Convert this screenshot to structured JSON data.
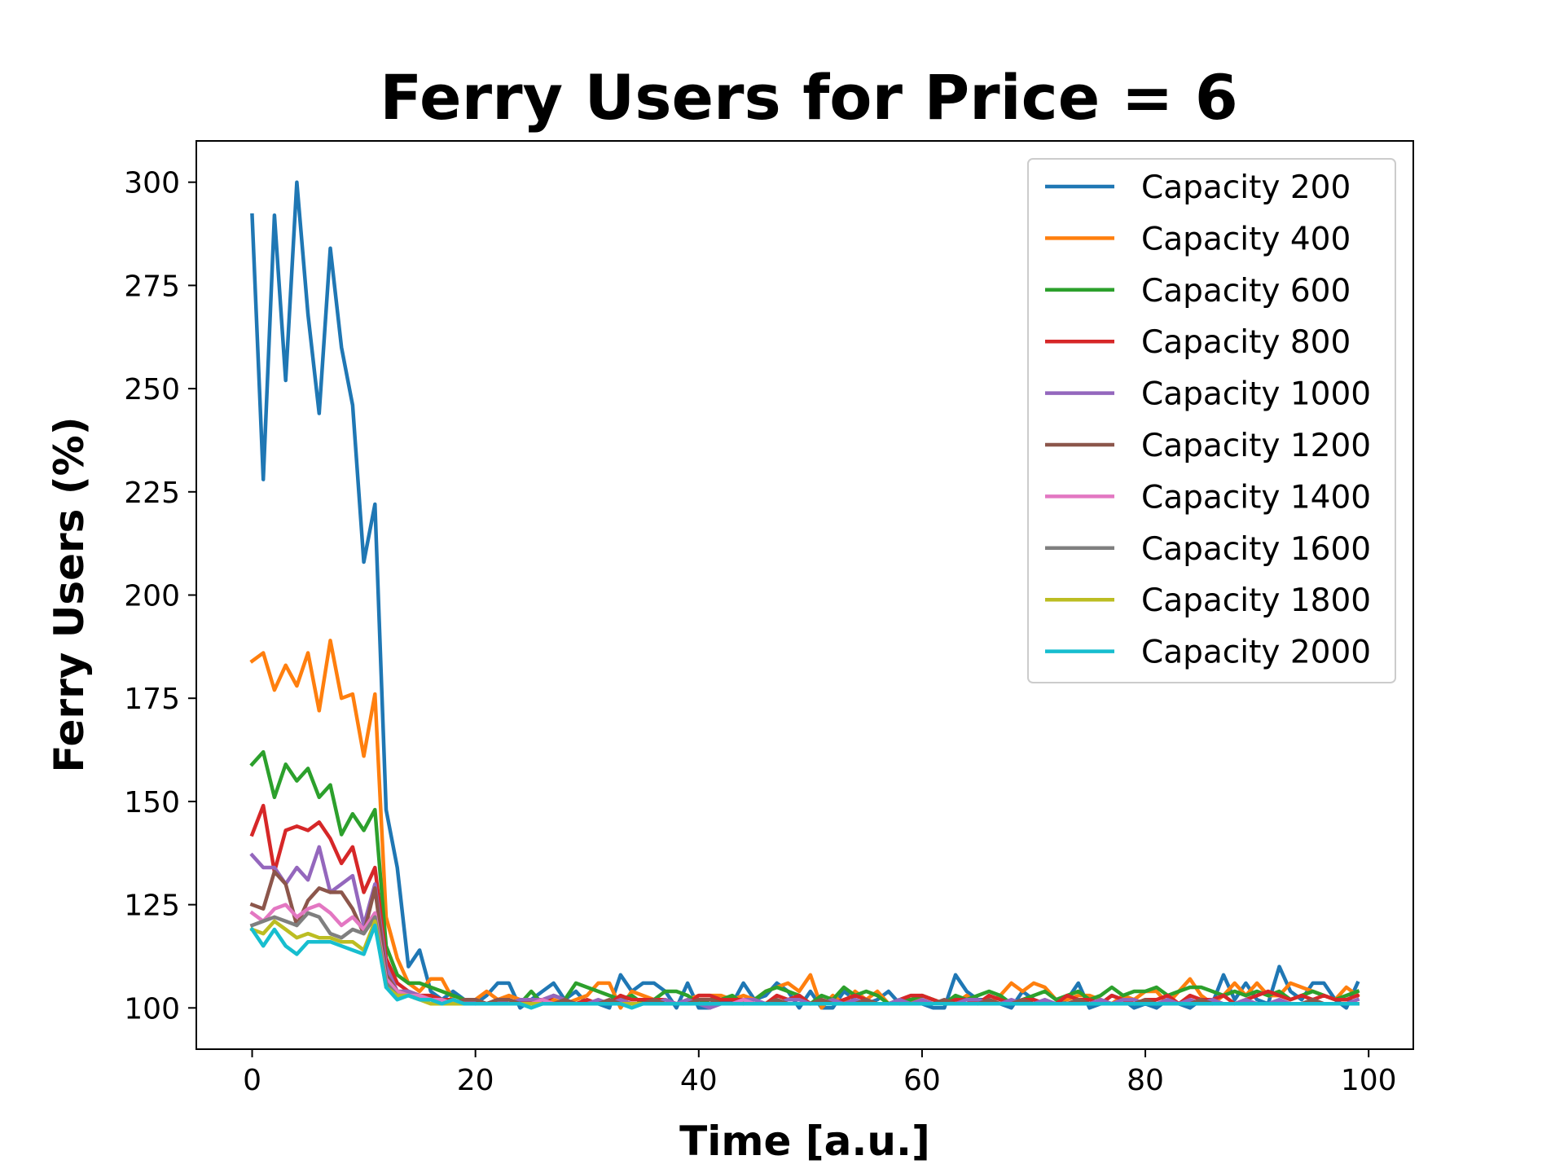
{
  "chart_data": {
    "type": "line",
    "title": "Ferry Users for Price = 6",
    "xlabel": "Time [a.u.]",
    "ylabel": "Ferry Users (%)",
    "xlim": [
      -5,
      104
    ],
    "ylim": [
      90,
      310
    ],
    "xticks": [
      0,
      20,
      40,
      60,
      80,
      100
    ],
    "yticks": [
      100,
      125,
      150,
      175,
      200,
      225,
      250,
      275,
      300
    ],
    "grid": false,
    "legend": "top-right",
    "series": [
      {
        "name": "Capacity 200",
        "color": "#1f77b4",
        "values": [
          292,
          228,
          292,
          252,
          300,
          268,
          244,
          284,
          260,
          246,
          208,
          222,
          148,
          134,
          110,
          114,
          104,
          102,
          104,
          102,
          101,
          103,
          106,
          106,
          100,
          102,
          104,
          106,
          102,
          104,
          101,
          101,
          100,
          108,
          104,
          106,
          106,
          104,
          100,
          106,
          100,
          100,
          102,
          101,
          106,
          102,
          103,
          106,
          104,
          100,
          104,
          100,
          100,
          104,
          102,
          101,
          102,
          104,
          101,
          102,
          101,
          100,
          100,
          108,
          104,
          102,
          102,
          101,
          100,
          104,
          102,
          101,
          101,
          102,
          106,
          100,
          101,
          103,
          102,
          100,
          101,
          100,
          102,
          101,
          100,
          102,
          101,
          108,
          102,
          106,
          102,
          101,
          110,
          104,
          102,
          106,
          106,
          102,
          100,
          106
        ]
      },
      {
        "name": "Capacity 400",
        "color": "#ff7f0e",
        "values": [
          184,
          186,
          177,
          183,
          178,
          186,
          172,
          189,
          175,
          176,
          161,
          176,
          122,
          112,
          106,
          104,
          107,
          107,
          102,
          101,
          102,
          104,
          102,
          103,
          102,
          102,
          101,
          102,
          101,
          102,
          103,
          106,
          106,
          100,
          104,
          103,
          102,
          101,
          101,
          102,
          103,
          103,
          103,
          102,
          103,
          102,
          104,
          105,
          106,
          104,
          108,
          100,
          103,
          101,
          104,
          102,
          104,
          101,
          101,
          101,
          103,
          102,
          101,
          101,
          103,
          101,
          101,
          103,
          106,
          104,
          106,
          105,
          102,
          102,
          103,
          103,
          102,
          101,
          103,
          102,
          104,
          104,
          101,
          104,
          107,
          103,
          101,
          103,
          106,
          103,
          106,
          103,
          103,
          106,
          105,
          104,
          103,
          102,
          105,
          103
        ]
      },
      {
        "name": "Capacity 600",
        "color": "#2ca02c",
        "values": [
          159,
          162,
          151,
          159,
          155,
          158,
          151,
          154,
          142,
          147,
          143,
          148,
          115,
          108,
          106,
          106,
          105,
          104,
          103,
          102,
          102,
          101,
          102,
          101,
          101,
          104,
          101,
          103,
          102,
          106,
          105,
          104,
          103,
          102,
          103,
          101,
          102,
          104,
          104,
          103,
          101,
          102,
          102,
          103,
          101,
          102,
          104,
          105,
          104,
          103,
          101,
          103,
          102,
          105,
          103,
          104,
          103,
          101,
          102,
          102,
          103,
          102,
          101,
          103,
          102,
          103,
          104,
          103,
          101,
          102,
          103,
          104,
          102,
          103,
          104,
          102,
          103,
          105,
          103,
          104,
          104,
          105,
          103,
          104,
          105,
          105,
          104,
          103,
          104,
          103,
          104,
          103,
          104,
          102,
          103,
          104,
          103,
          102,
          103,
          104
        ]
      },
      {
        "name": "Capacity 800",
        "color": "#d62728",
        "values": [
          142,
          149,
          133,
          143,
          144,
          143,
          145,
          141,
          135,
          139,
          128,
          134,
          112,
          106,
          104,
          103,
          103,
          102,
          102,
          101,
          102,
          101,
          102,
          102,
          101,
          102,
          101,
          103,
          102,
          101,
          102,
          101,
          101,
          103,
          102,
          102,
          102,
          102,
          101,
          101,
          103,
          103,
          102,
          102,
          102,
          102,
          101,
          103,
          102,
          103,
          101,
          102,
          101,
          102,
          103,
          102,
          101,
          101,
          102,
          103,
          103,
          102,
          101,
          102,
          102,
          101,
          103,
          102,
          101,
          102,
          102,
          101,
          101,
          103,
          102,
          102,
          101,
          103,
          102,
          101,
          102,
          102,
          103,
          101,
          103,
          102,
          102,
          103,
          101,
          102,
          103,
          104,
          103,
          102,
          103,
          102,
          103,
          102,
          102,
          103
        ]
      },
      {
        "name": "Capacity 1000",
        "color": "#9467bd",
        "values": [
          137,
          134,
          134,
          130,
          134,
          131,
          139,
          128,
          130,
          132,
          120,
          130,
          110,
          104,
          104,
          103,
          102,
          102,
          101,
          101,
          102,
          101,
          102,
          101,
          102,
          102,
          102,
          103,
          102,
          101,
          101,
          102,
          101,
          102,
          101,
          101,
          101,
          102,
          101,
          102,
          101,
          100,
          101,
          101,
          102,
          102,
          101,
          101,
          102,
          102,
          101,
          101,
          102,
          101,
          102,
          101,
          101,
          101,
          102,
          101,
          102,
          101,
          101,
          101,
          102,
          102,
          101,
          101,
          102,
          101,
          101,
          102,
          101,
          101,
          102,
          101,
          102,
          101,
          102,
          102,
          101,
          101,
          102,
          101,
          102,
          101,
          102,
          101,
          101,
          102,
          101,
          101,
          102,
          101,
          101,
          102,
          101,
          101,
          101,
          102
        ]
      },
      {
        "name": "Capacity 1200",
        "color": "#8c564b",
        "values": [
          125,
          124,
          133,
          130,
          120,
          126,
          129,
          128,
          128,
          124,
          118,
          129,
          108,
          104,
          103,
          103,
          102,
          102,
          101,
          102,
          102,
          101,
          102,
          102,
          101,
          101,
          102,
          101,
          102,
          101,
          101,
          101,
          102,
          101,
          101,
          101,
          102,
          101,
          101,
          101,
          102,
          102,
          101,
          101,
          101,
          101,
          101,
          102,
          101,
          101,
          101,
          102,
          101,
          101,
          101,
          102,
          101,
          101,
          101,
          101,
          101,
          101,
          102,
          101,
          101,
          101,
          102,
          101,
          101,
          102,
          101,
          101,
          101,
          101,
          102,
          101,
          101,
          101,
          101,
          101,
          102,
          101,
          101,
          101,
          101,
          102,
          101,
          101,
          101,
          101,
          101,
          101,
          101,
          101,
          101,
          102,
          101,
          101,
          101,
          101
        ]
      },
      {
        "name": "Capacity 1400",
        "color": "#e377c2",
        "values": [
          123,
          121,
          124,
          125,
          122,
          124,
          125,
          123,
          120,
          122,
          119,
          123,
          107,
          104,
          103,
          103,
          102,
          102,
          101,
          101,
          101,
          101,
          101,
          101,
          101,
          101,
          102,
          101,
          101,
          101,
          101,
          101,
          101,
          101,
          101,
          101,
          101,
          101,
          101,
          101,
          101,
          101,
          101,
          101,
          102,
          101,
          101,
          101,
          101,
          101,
          101,
          101,
          101,
          101,
          101,
          101,
          101,
          101,
          101,
          101,
          101,
          101,
          101,
          101,
          101,
          101,
          101,
          101,
          101,
          101,
          101,
          101,
          101,
          101,
          101,
          101,
          101,
          101,
          101,
          101,
          101,
          101,
          101,
          101,
          101,
          101,
          101,
          101,
          101,
          101,
          101,
          101,
          101,
          101,
          101,
          101,
          101,
          101,
          101,
          101
        ]
      },
      {
        "name": "Capacity 1600",
        "color": "#7f7f7f",
        "values": [
          120,
          121,
          122,
          121,
          120,
          123,
          122,
          118,
          117,
          119,
          118,
          122,
          106,
          103,
          103,
          102,
          102,
          101,
          101,
          101,
          101,
          101,
          101,
          101,
          101,
          101,
          101,
          101,
          101,
          101,
          101,
          101,
          101,
          101,
          101,
          101,
          101,
          101,
          101,
          101,
          101,
          101,
          101,
          101,
          101,
          101,
          101,
          101,
          101,
          101,
          101,
          101,
          101,
          101,
          101,
          101,
          101,
          101,
          101,
          101,
          101,
          101,
          101,
          101,
          101,
          101,
          101,
          101,
          101,
          101,
          101,
          101,
          101,
          101,
          101,
          101,
          101,
          101,
          101,
          101,
          101,
          101,
          101,
          101,
          101,
          101,
          101,
          101,
          101,
          101,
          101,
          101,
          101,
          101,
          101,
          101,
          101,
          101,
          101,
          101
        ]
      },
      {
        "name": "Capacity 1800",
        "color": "#bcbd22",
        "values": [
          119,
          118,
          121,
          119,
          117,
          118,
          117,
          117,
          116,
          116,
          114,
          121,
          105,
          103,
          103,
          102,
          101,
          101,
          101,
          101,
          101,
          101,
          101,
          101,
          101,
          101,
          101,
          101,
          101,
          101,
          101,
          101,
          101,
          101,
          101,
          101,
          101,
          101,
          101,
          101,
          101,
          101,
          101,
          101,
          101,
          101,
          101,
          101,
          101,
          101,
          101,
          101,
          101,
          101,
          101,
          101,
          101,
          101,
          101,
          101,
          101,
          101,
          101,
          101,
          101,
          101,
          101,
          101,
          101,
          101,
          101,
          101,
          101,
          101,
          101,
          101,
          101,
          101,
          101,
          101,
          101,
          101,
          101,
          101,
          101,
          101,
          101,
          101,
          101,
          101,
          101,
          101,
          101,
          101,
          101,
          101,
          101,
          101,
          101,
          101
        ]
      },
      {
        "name": "Capacity 2000",
        "color": "#17becf",
        "values": [
          119,
          115,
          119,
          115,
          113,
          116,
          116,
          116,
          115,
          114,
          113,
          120,
          105,
          102,
          103,
          102,
          102,
          101,
          102,
          101,
          101,
          101,
          101,
          101,
          101,
          100,
          101,
          101,
          101,
          101,
          101,
          101,
          101,
          101,
          100,
          101,
          101,
          101,
          101,
          101,
          101,
          101,
          101,
          101,
          101,
          101,
          101,
          101,
          101,
          101,
          101,
          101,
          101,
          101,
          101,
          101,
          101,
          101,
          101,
          101,
          101,
          101,
          101,
          101,
          101,
          101,
          101,
          101,
          101,
          101,
          101,
          101,
          101,
          101,
          101,
          101,
          101,
          101,
          101,
          101,
          101,
          101,
          101,
          101,
          101,
          101,
          101,
          101,
          101,
          101,
          101,
          101,
          101,
          101,
          101,
          101,
          101,
          101,
          101,
          101
        ]
      }
    ]
  }
}
